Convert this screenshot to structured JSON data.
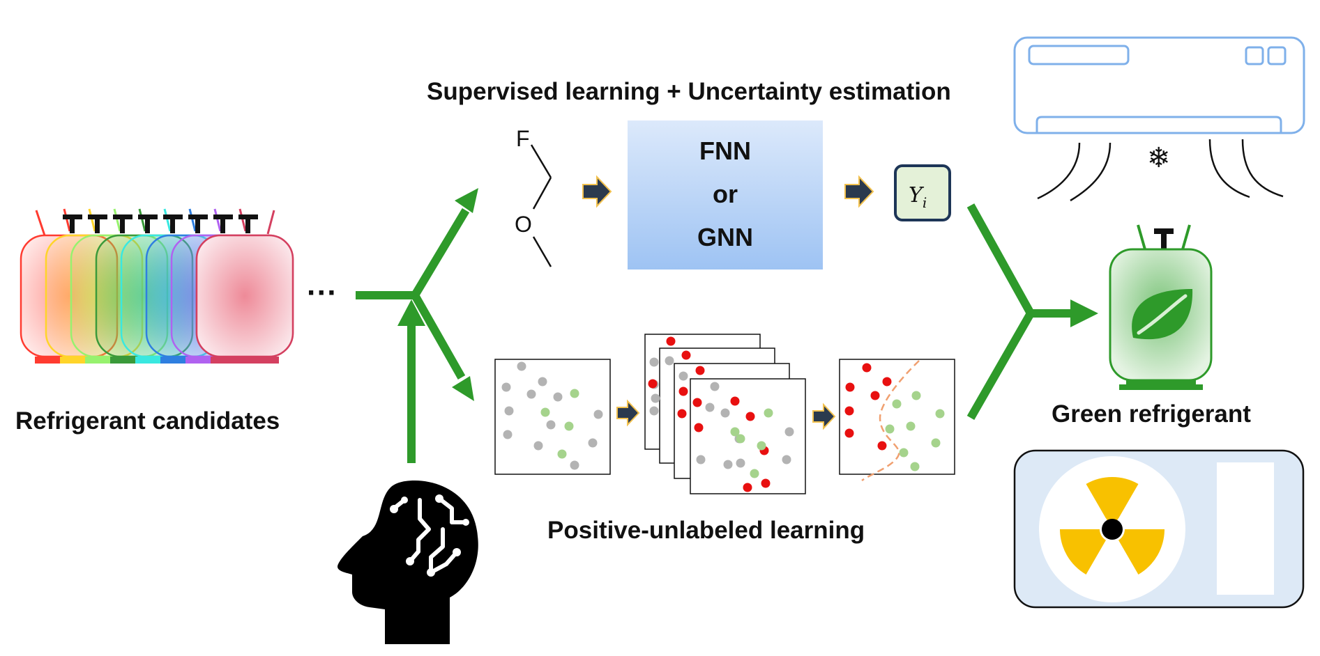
{
  "labels": {
    "candidates": "Refrigerant candidates",
    "ellipsis": "···",
    "supervised": "Supervised learning + Uncertainty estimation",
    "pu": "Positive-unlabeled learning",
    "green": "Green refrigerant"
  },
  "model_box": {
    "line1": "FNN",
    "line2": "or",
    "line3": "GNN"
  },
  "output_symbol": {
    "base": "Y",
    "sub": "i"
  },
  "molecule": {
    "atom1": "F",
    "atom2": "O"
  },
  "snowflake": "❄",
  "colors": {
    "arrow_green": "#2e9a2a",
    "model_box_top": "#dce9fb",
    "model_box_bottom": "#9ec3f3",
    "positive_red": "#e81010",
    "unlabeled_gray": "#b3b3b3",
    "predicted_green": "#a5d38c",
    "boundary_orange": "#f0a070",
    "radiation_yellow": "#f8c100",
    "cylinder_green": "#2e9a2a"
  },
  "tank_colors": [
    "#ff3b30",
    "#ffd42a",
    "#97f26e",
    "#3a9a3a",
    "#39e8e0",
    "#2f7fe0",
    "#b062f0",
    "#d44060"
  ]
}
